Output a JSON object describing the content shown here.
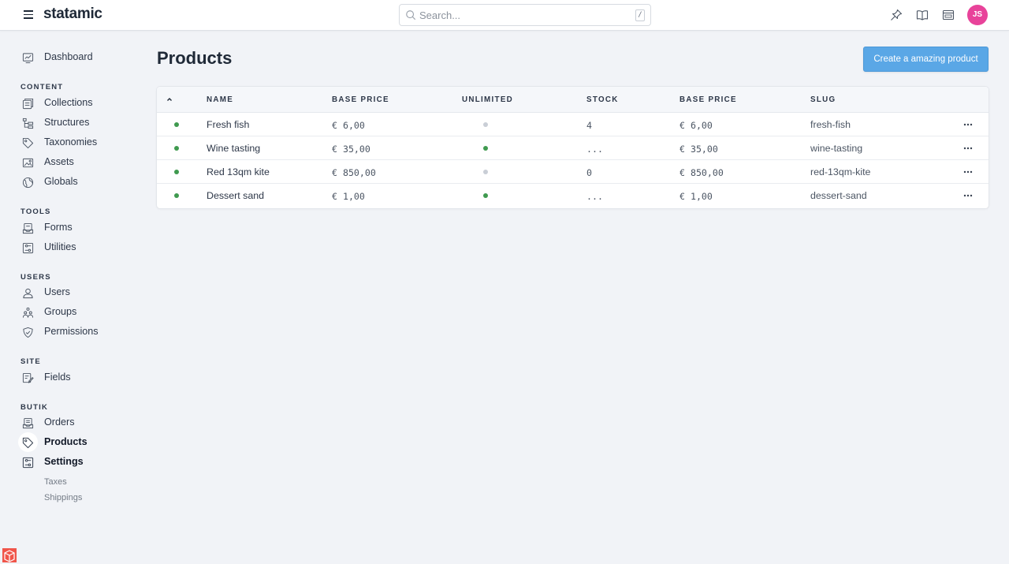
{
  "app": {
    "brand": "statamic",
    "search_placeholder": "Search...",
    "search_shortcut": "/",
    "user_initials": "JS",
    "colors": {
      "accent": "#5aa7e6",
      "avatar": "#e8439a",
      "published": "#3f9a4f",
      "inactive": "#c9ced6"
    }
  },
  "sidebar": {
    "dashboard": "Dashboard",
    "sections": [
      {
        "title": "CONTENT",
        "items": [
          {
            "label": "Collections",
            "icon": "collections-icon"
          },
          {
            "label": "Structures",
            "icon": "structures-icon"
          },
          {
            "label": "Taxonomies",
            "icon": "taxonomies-icon"
          },
          {
            "label": "Assets",
            "icon": "assets-icon"
          },
          {
            "label": "Globals",
            "icon": "globals-icon"
          }
        ]
      },
      {
        "title": "TOOLS",
        "items": [
          {
            "label": "Forms",
            "icon": "forms-icon"
          },
          {
            "label": "Utilities",
            "icon": "utilities-icon"
          }
        ]
      },
      {
        "title": "USERS",
        "items": [
          {
            "label": "Users",
            "icon": "users-icon"
          },
          {
            "label": "Groups",
            "icon": "groups-icon"
          },
          {
            "label": "Permissions",
            "icon": "permissions-icon"
          }
        ]
      },
      {
        "title": "SITE",
        "items": [
          {
            "label": "Fields",
            "icon": "fields-icon"
          }
        ]
      },
      {
        "title": "BUTIK",
        "items": [
          {
            "label": "Orders",
            "icon": "orders-icon"
          },
          {
            "label": "Products",
            "icon": "products-icon",
            "active": true
          },
          {
            "label": "Settings",
            "icon": "settings-icon",
            "active": true
          }
        ]
      }
    ],
    "settings_children": [
      "Taxes",
      "Shippings"
    ]
  },
  "main": {
    "title": "Products",
    "create_button": "Create a amazing product",
    "columns": [
      "NAME",
      "BASE PRICE",
      "UNLIMITED",
      "STOCK",
      "BASE PRICE",
      "SLUG"
    ],
    "rows": [
      {
        "name": "Fresh fish",
        "base_price": "€ 6,00",
        "unlimited": false,
        "stock": "4",
        "base_price_2": "€ 6,00",
        "slug": "fresh-fish",
        "published": true
      },
      {
        "name": "Wine tasting",
        "base_price": "€ 35,00",
        "unlimited": true,
        "stock": "...",
        "base_price_2": "€ 35,00",
        "slug": "wine-tasting",
        "published": true
      },
      {
        "name": "Red 13qm kite",
        "base_price": "€ 850,00",
        "unlimited": false,
        "stock": "0",
        "base_price_2": "€ 850,00",
        "slug": "red-13qm-kite",
        "published": true
      },
      {
        "name": "Dessert sand",
        "base_price": "€ 1,00",
        "unlimited": true,
        "stock": "...",
        "base_price_2": "€ 1,00",
        "slug": "dessert-sand",
        "published": true
      }
    ]
  }
}
